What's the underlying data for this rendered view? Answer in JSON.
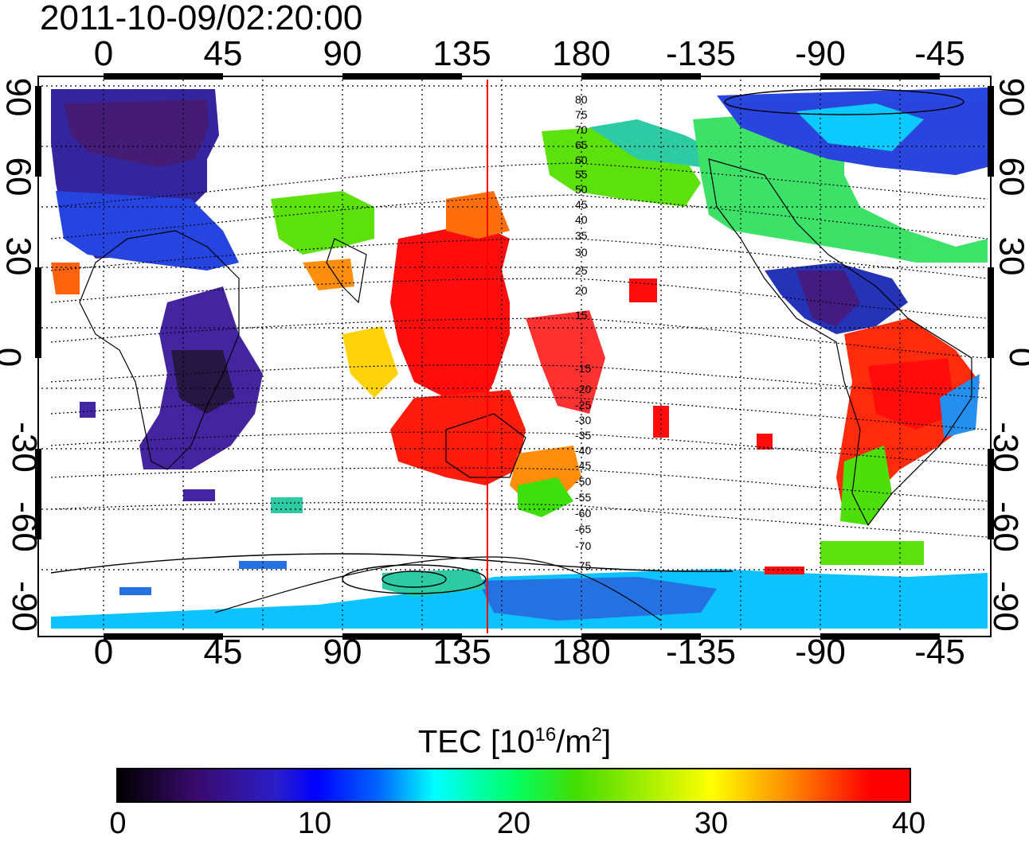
{
  "title": "2011-10-09/02:20:00",
  "lon_ticks_top": [
    "0",
    "45",
    "90",
    "135",
    "180",
    "-135",
    "-90",
    "-45"
  ],
  "lon_ticks_bottom": [
    "0",
    "45",
    "90",
    "135",
    "180",
    "-135",
    "-90",
    "-45"
  ],
  "lat_ticks_left": [
    "90",
    "60",
    "30",
    "0",
    "-30",
    "-60",
    "-90"
  ],
  "lat_ticks_right": [
    "90",
    "60",
    "30",
    "0",
    "-30",
    "-60",
    "-90"
  ],
  "contour_labels": [
    "80",
    "75",
    "70",
    "65",
    "60",
    "55",
    "50",
    "45",
    "40",
    "35",
    "30",
    "25",
    "20",
    "15",
    "-15",
    "-20",
    "-25",
    "-30",
    "-35",
    "-40",
    "-45",
    "-50",
    "-55",
    "-60",
    "-65",
    "-70",
    "-75"
  ],
  "colorbar": {
    "label_main": "TEC  [10",
    "label_exp": "16",
    "label_mid": "/m",
    "label_exp2": "2",
    "label_end": "]",
    "ticks": [
      "0",
      "10",
      "20",
      "30",
      "40"
    ],
    "range": [
      0,
      40
    ]
  },
  "meridian_marker_lon": 143,
  "colors": {
    "marker": "#ff0000",
    "grid": "#000000"
  }
}
